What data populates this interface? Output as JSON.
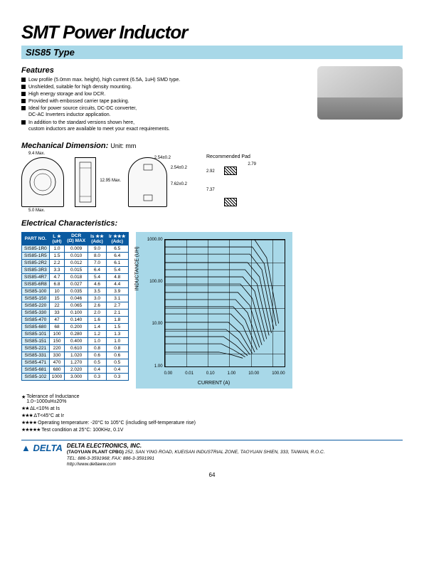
{
  "title": "SMT Power Inductor",
  "subtitle": "SIS85 Type",
  "features": {
    "heading": "Features",
    "items": [
      "Low profile (5.0mm max. height), high current (6.5A, 1uH) SMD type.",
      "Unshielded, suitable for high density mounting.",
      "High energy storage and low DCR.",
      "Provided with embossed carrier tape packing.",
      "Ideal for power source circuits, DC-DC converter,\nDC-AC Inverters inductor application.",
      "In addition to the standard versions shown here,\ncustom inductors are available to meet your exact requirements."
    ]
  },
  "mechanical": {
    "heading": "Mechanical Dimension:",
    "unit_label": "Unit: mm",
    "dims": {
      "width_max": "9.4 Max.",
      "height_max": "5.0 Max.",
      "length_max": "12.95 Max.",
      "t1": "2.54±0.2",
      "t2": "2.54±0.2",
      "t3": "7.62±0.2"
    },
    "pad": {
      "label": "Recommended Pad",
      "a": "2.79",
      "b": "2.92",
      "c": "7.37"
    }
  },
  "electrical": {
    "heading": "Electrical Characteristics:",
    "columns": [
      "PART NO.",
      "L ★\n(uH)",
      "DCR\n(Ω) MAX",
      "Is ★★\n(Adc)",
      "Ir ★★★\n(Adc)"
    ],
    "rows": [
      [
        "SIS85-1R0",
        "1.0",
        "0.009",
        "9.0",
        "6.5"
      ],
      [
        "SIS85-1R5",
        "1.5",
        "0.010",
        "8.0",
        "6.4"
      ],
      [
        "SIS85-2R2",
        "2.2",
        "0.012",
        "7.0",
        "6.1"
      ],
      [
        "SIS85-3R3",
        "3.3",
        "0.015",
        "6.4",
        "5.4"
      ],
      [
        "SIS85-4R7",
        "4.7",
        "0.018",
        "5.4",
        "4.8"
      ],
      [
        "SIS85-6R8",
        "6.8",
        "0.027",
        "4.6",
        "4.4"
      ],
      [
        "SIS85-100",
        "10",
        "0.035",
        "3.5",
        "3.9"
      ],
      [
        "SIS85-150",
        "15",
        "0.046",
        "3.0",
        "3.1"
      ],
      [
        "SIS85-220",
        "22",
        "0.065",
        "2.6",
        "2.7"
      ],
      [
        "SIS85-330",
        "33",
        "0.100",
        "2.0",
        "2.1"
      ],
      [
        "SIS85-470",
        "47",
        "0.140",
        "1.6",
        "1.8"
      ],
      [
        "SIS85-680",
        "68",
        "0.200",
        "1.4",
        "1.5"
      ],
      [
        "SIS85-101",
        "100",
        "0.280",
        "1.2",
        "1.3"
      ],
      [
        "SIS85-151",
        "150",
        "0.400",
        "1.0",
        "1.0"
      ],
      [
        "SIS85-221",
        "220",
        "0.610",
        "0.8",
        "0.8"
      ],
      [
        "SIS85-331",
        "330",
        "1.020",
        "0.6",
        "0.6"
      ],
      [
        "SIS85-471",
        "470",
        "1.270",
        "0.5",
        "0.5"
      ],
      [
        "SIS85-681",
        "680",
        "2.020",
        "0.4",
        "0.4"
      ],
      [
        "SIS85-102",
        "1000",
        "3.000",
        "0.3",
        "0.3"
      ]
    ]
  },
  "chart": {
    "ylabel": "INDUCTANCE (UH)",
    "xlabel": "CURRENT (A)",
    "yticks": [
      "1000.00",
      "100.00",
      "10.00",
      "1.00"
    ],
    "xticks": [
      "0.00",
      "0.01",
      "0.10",
      "1.00",
      "10.00",
      "100.00"
    ],
    "xlim_log": [
      -2.3,
      2
    ],
    "ylim_log": [
      0,
      3
    ],
    "background_color": "#a8d8e8",
    "grid_color": "#000000",
    "series_color": "#000000",
    "line_width": 0.8,
    "series_paths": [
      "M0,0 L75,0 L85,15 L95,70",
      "M0,6 L73,6 L83,20 L93,72",
      "M0,12 L71,12 L81,25 L91,75",
      "M0,19 L69,19 L79,31 L89,78",
      "M0,25 L67,25 L77,37 L87,80",
      "M0,31 L65,31 L75,43 L85,83",
      "M0,37 L63,37 L73,49 L83,85",
      "M0,44 L61,44 L71,55 L81,88",
      "M0,50 L59,50 L69,61 L79,90",
      "M0,56 L57,56 L67,67 L77,92",
      "M0,62 L55,62 L65,72 L75,94",
      "M0,69 L53,69 L63,78 L73,95",
      "M0,75 L51,75 L61,83 L71,96",
      "M0,81 L49,81 L59,88 L69,97",
      "M0,87 L47,87 L57,92 L67,98",
      "M0,94 L45,94 L55,96 L65,99"
    ]
  },
  "notes": {
    "n1": "Tolerance of Inductance\n1.0~1000uH±20%",
    "n2": "ΔL<10% at Is",
    "n3": "ΔT<45°C  at Ir",
    "n4": "Operating temperature: -20°C to 105°C  (including self-temperature rise)",
    "n5": "Test condition at 25°C: 100KHz, 0.1V"
  },
  "footer": {
    "logo": "▲ DELTA",
    "company": "DELTA ELECTRONICS, INC.",
    "plant": "(TAOYUAN PLANT CPBG)",
    "address": "252, SAN YING ROAD, KUEISAN INDUSTRIAL ZONE, TAOYUAN SHIEN, 333, TAIWAN, R.O.C.",
    "tel": "TEL: 886-3-3591968; FAX: 886-3-3591991",
    "url": "http://www.deltaww.com",
    "page": "64"
  }
}
